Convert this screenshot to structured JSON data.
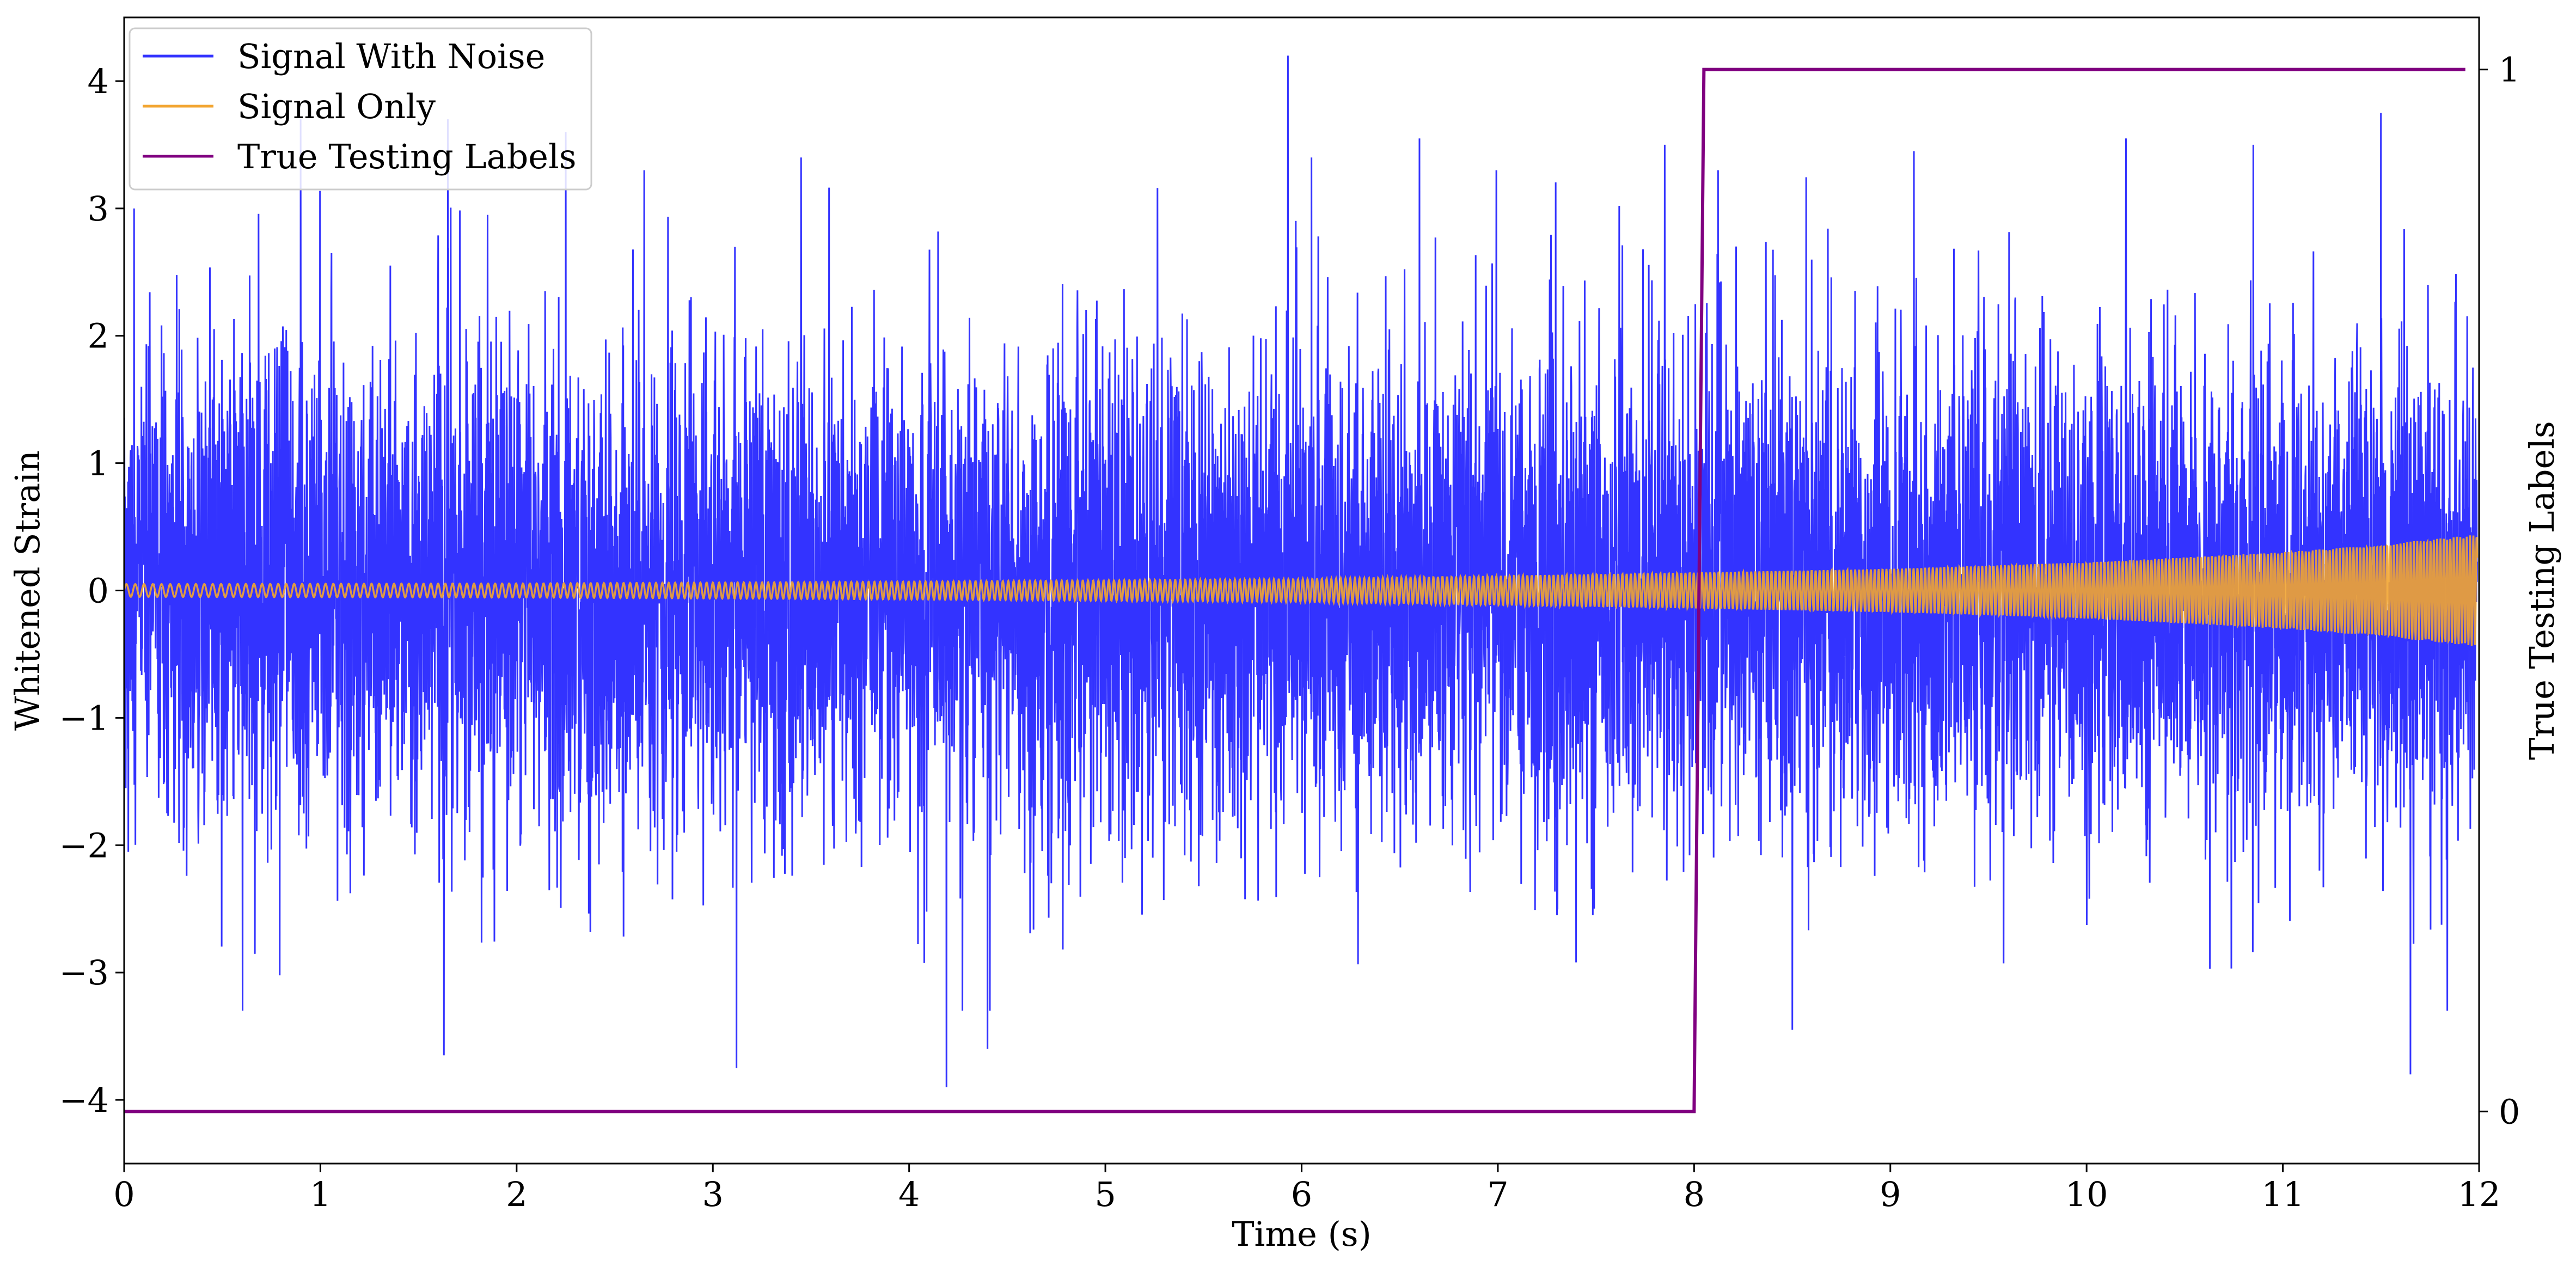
{
  "chart_data": {
    "type": "line",
    "title": "",
    "xlabel": "Time (s)",
    "ylabel": "Whitened Strain",
    "ylabel_right": "True Testing Labels",
    "xlim": [
      0,
      12
    ],
    "ylim": [
      -4.5,
      4.5
    ],
    "ylim_right": [
      -0.05,
      1.05
    ],
    "x_ticks": [
      0,
      1,
      2,
      3,
      4,
      5,
      6,
      7,
      8,
      9,
      10,
      11,
      12
    ],
    "x_tick_labels": [
      "0",
      "1",
      "2",
      "3",
      "4",
      "5",
      "6",
      "7",
      "8",
      "9",
      "10",
      "11",
      "12"
    ],
    "y_ticks": [
      -4,
      -3,
      -2,
      -1,
      0,
      1,
      2,
      3,
      4
    ],
    "y_tick_labels": [
      "−4",
      "−3",
      "−2",
      "−1",
      "0",
      "1",
      "2",
      "3",
      "4"
    ],
    "y_right_ticks": [
      0,
      1
    ],
    "y_right_tick_labels": [
      "0",
      "1"
    ],
    "grid": false,
    "legend_position": "top-left",
    "series": [
      {
        "name": "Signal With Noise",
        "color": "#3333ff",
        "axis": "left",
        "description": "dense noisy oscillation",
        "baseline_amplitude": 1.3,
        "peak_max": 4.2,
        "peak_min": -3.9,
        "notable_spikes": [
          {
            "x": 5.93,
            "y": 4.2
          },
          {
            "x": 4.19,
            "y": -3.9
          },
          {
            "x": 11.65,
            "y": -3.8
          },
          {
            "x": 1.63,
            "y": -3.65
          },
          {
            "x": 11.5,
            "y": 3.75
          },
          {
            "x": 1.65,
            "y": 3.7
          },
          {
            "x": 0.9,
            "y": 3.7
          },
          {
            "x": 2.25,
            "y": 3.6
          },
          {
            "x": 3.12,
            "y": -3.75
          },
          {
            "x": 4.4,
            "y": -3.6
          },
          {
            "x": 8.5,
            "y": -3.45
          },
          {
            "x": 6.6,
            "y": 3.55
          },
          {
            "x": 10.2,
            "y": 3.55
          },
          {
            "x": 10.85,
            "y": 3.5
          },
          {
            "x": 7.85,
            "y": 3.5
          },
          {
            "x": 9.12,
            "y": 3.45
          },
          {
            "x": 3.45,
            "y": 3.4
          },
          {
            "x": 2.65,
            "y": 3.3
          },
          {
            "x": 6.05,
            "y": 3.4
          },
          {
            "x": 0.05,
            "y": 3.0
          }
        ]
      },
      {
        "name": "Signal Only",
        "color": "#f2a531",
        "axis": "left",
        "description": "chirp with slowly growing amplitude",
        "envelope": {
          "x": [
            0,
            2,
            4,
            6,
            8,
            9,
            10,
            11,
            11.5,
            12
          ],
          "amplitude": [
            0.05,
            0.055,
            0.07,
            0.09,
            0.14,
            0.17,
            0.22,
            0.3,
            0.36,
            0.44
          ]
        },
        "frequency_hz": {
          "start": 22,
          "end": 60
        }
      },
      {
        "name": "True Testing Labels",
        "color": "#800080",
        "axis": "right",
        "x": [
          0,
          8.0,
          8.05,
          11.93
        ],
        "values": [
          0,
          0,
          1,
          1
        ]
      }
    ]
  }
}
